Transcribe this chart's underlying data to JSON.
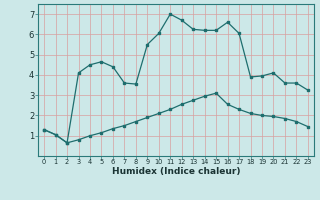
{
  "xlabel": "Humidex (Indice chaleur)",
  "background_color": "#cce8e8",
  "grid_color": "#aacccc",
  "line_color": "#1e6e6e",
  "series1_x": [
    0,
    1,
    2,
    3,
    4,
    5,
    6,
    7,
    8,
    9,
    10,
    11,
    12,
    13,
    14,
    15,
    16,
    17,
    18,
    19,
    20,
    21,
    22,
    23
  ],
  "series1_y": [
    1.3,
    1.05,
    0.65,
    4.1,
    4.5,
    4.65,
    4.4,
    3.6,
    3.55,
    5.5,
    6.05,
    7.0,
    6.7,
    6.25,
    6.2,
    6.2,
    6.6,
    6.05,
    3.9,
    3.95,
    4.1,
    3.6,
    3.6,
    3.25
  ],
  "series2_x": [
    0,
    1,
    2,
    3,
    4,
    5,
    6,
    7,
    8,
    9,
    10,
    11,
    12,
    13,
    14,
    15,
    16,
    17,
    18,
    19,
    20,
    21,
    22,
    23
  ],
  "series2_y": [
    1.3,
    1.05,
    0.65,
    0.8,
    1.0,
    1.15,
    1.35,
    1.5,
    1.7,
    1.9,
    2.1,
    2.3,
    2.55,
    2.75,
    2.95,
    3.1,
    2.55,
    2.3,
    2.1,
    2.0,
    1.95,
    1.85,
    1.7,
    1.45
  ],
  "ylim": [
    0,
    7.5
  ],
  "xlim": [
    -0.5,
    23.5
  ],
  "yticks": [
    1,
    2,
    3,
    4,
    5,
    6,
    7
  ],
  "xtick_labels": [
    "0",
    "1",
    "2",
    "3",
    "4",
    "5",
    "6",
    "7",
    "8",
    "9",
    "10",
    "11",
    "12",
    "13",
    "14",
    "15",
    "16",
    "17",
    "18",
    "19",
    "20",
    "21",
    "22",
    "23"
  ]
}
